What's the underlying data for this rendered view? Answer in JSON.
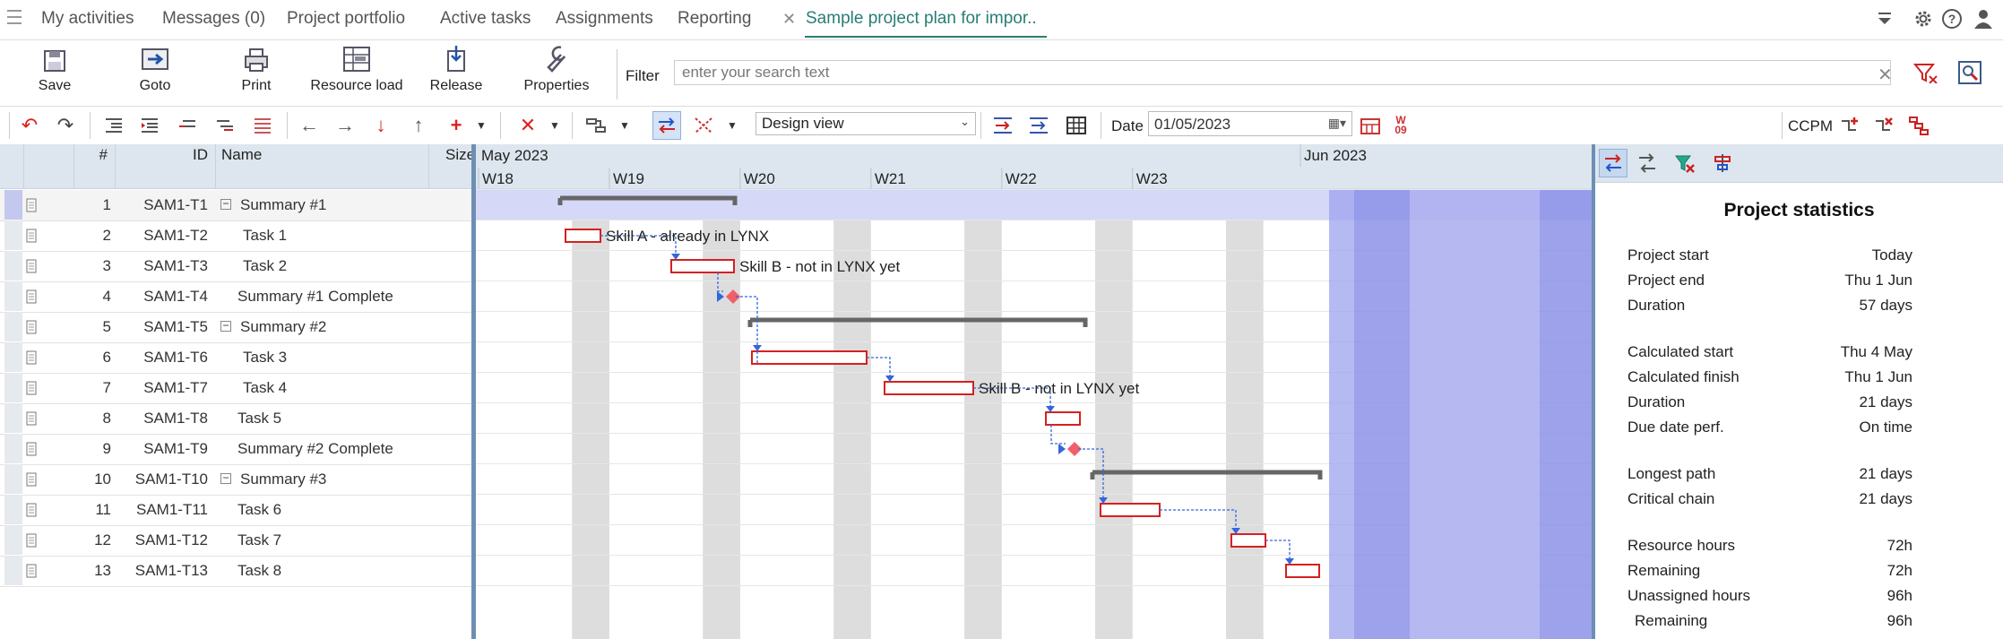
{
  "nav": {
    "items": [
      "My activities",
      "Messages (0)",
      "Project portfolio",
      "Active tasks",
      "Assignments",
      "Reporting"
    ],
    "active_tab": "Sample project plan for impor.."
  },
  "ribbon": {
    "buttons": [
      {
        "label": "Save",
        "icon": "save-icon"
      },
      {
        "label": "Goto",
        "icon": "goto-icon"
      },
      {
        "label": "Print",
        "icon": "print-icon"
      },
      {
        "label": "Resource load",
        "icon": "resource-load-icon"
      },
      {
        "label": "Release",
        "icon": "release-icon"
      },
      {
        "label": "Properties",
        "icon": "wrench-icon"
      }
    ],
    "filter_label": "Filter",
    "filter_placeholder": "enter your search text"
  },
  "toolbar": {
    "view_select": "Design view",
    "date_label": "Date",
    "date_value": "01/05/2023",
    "ccpm_label": "CCPM"
  },
  "grid": {
    "headers": {
      "num": "#",
      "id": "ID",
      "name": "Name",
      "size": "Size"
    },
    "rows": [
      {
        "num": "1",
        "id": "SAM1-T1",
        "name": "Summary #1",
        "summary": true
      },
      {
        "num": "2",
        "id": "SAM1-T2",
        "name": "Task 1",
        "summary": false
      },
      {
        "num": "3",
        "id": "SAM1-T3",
        "name": "Task 2",
        "summary": false
      },
      {
        "num": "4",
        "id": "SAM1-T4",
        "name": "Summary #1 Complete",
        "summary": false
      },
      {
        "num": "5",
        "id": "SAM1-T5",
        "name": "Summary #2",
        "summary": true
      },
      {
        "num": "6",
        "id": "SAM1-T6",
        "name": "Task 3",
        "summary": false
      },
      {
        "num": "7",
        "id": "SAM1-T7",
        "name": "Task 4",
        "summary": false
      },
      {
        "num": "8",
        "id": "SAM1-T8",
        "name": "Task 5",
        "summary": false
      },
      {
        "num": "9",
        "id": "SAM1-T9",
        "name": "Summary #2 Complete",
        "summary": false
      },
      {
        "num": "10",
        "id": "SAM1-T10",
        "name": "Summary #3",
        "summary": true
      },
      {
        "num": "11",
        "id": "SAM1-T11",
        "name": "Task 6",
        "summary": false
      },
      {
        "num": "12",
        "id": "SAM1-T12",
        "name": "Task 7",
        "summary": false
      },
      {
        "num": "13",
        "id": "SAM1-T13",
        "name": "Task 8",
        "summary": false
      }
    ]
  },
  "gantt": {
    "months": [
      "May 2023",
      "Jun 2023"
    ],
    "weeks": [
      "W18",
      "W19",
      "W20",
      "W21",
      "W22",
      "W23"
    ],
    "bar_labels": [
      "Skill A - already in LYNX",
      "Skill B - not in LYNX yet",
      "Skill B - not in LYNX yet"
    ],
    "colors": {
      "task_border": "#d62020",
      "summary": "#666666",
      "link": "#3366dd",
      "milestone": "#f0606a",
      "highlight": "#9ea3ee",
      "weekend": "#d9d9d9"
    }
  },
  "stats": {
    "title": "Project statistics",
    "rows": [
      {
        "label": "Project start",
        "value": "Today"
      },
      {
        "label": "Project end",
        "value": "Thu 1 Jun"
      },
      {
        "label": "Duration",
        "value": "57 days"
      },
      {
        "label": "Calculated start",
        "value": "Thu 4 May"
      },
      {
        "label": "Calculated finish",
        "value": "Thu 1 Jun"
      },
      {
        "label": "Duration",
        "value": "21 days"
      },
      {
        "label": "Due date perf.",
        "value": "On time"
      },
      {
        "label": "Longest path",
        "value": "21 days"
      },
      {
        "label": "Critical chain",
        "value": "21 days"
      },
      {
        "label": "Resource hours",
        "value": "72h"
      },
      {
        "label": "Remaining",
        "value": "72h"
      },
      {
        "label": "Unassigned hours",
        "value": "96h"
      },
      {
        "label": "Remaining",
        "value": "96h"
      }
    ]
  }
}
